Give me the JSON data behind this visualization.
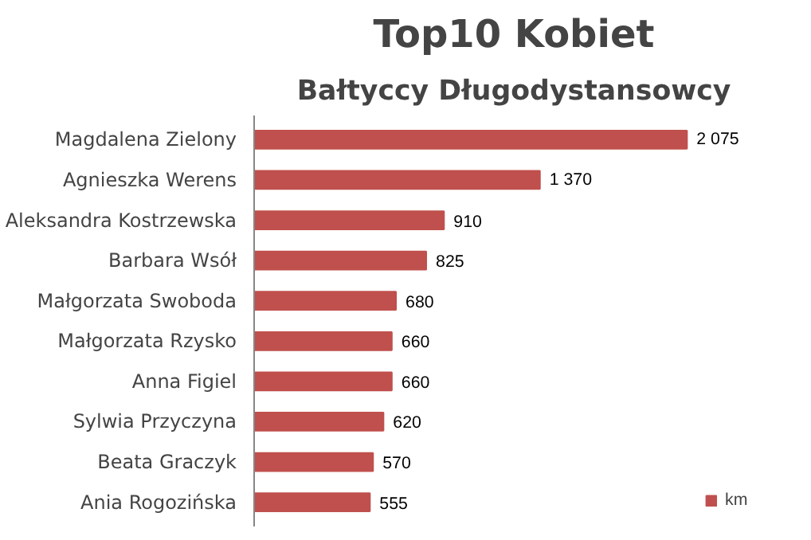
{
  "chart_data": {
    "type": "bar",
    "orientation": "horizontal",
    "title": "Top10 Kobiet",
    "subtitle": "Bałtyccy Długodystansowcy",
    "categories": [
      "Magdalena Zielony",
      "Agnieszka Werens",
      "Aleksandra Kostrzewska",
      "Barbara Wsół",
      "Małgorzata Swoboda",
      "Małgorzata Rzysko",
      "Anna Figiel",
      "Sylwia Przyczyna",
      "Beata Graczyk",
      "Ania Rogozińska"
    ],
    "series": [
      {
        "name": "km",
        "color": "#c0504d",
        "values": [
          2075,
          1370,
          910,
          825,
          680,
          660,
          660,
          620,
          570,
          555
        ],
        "value_labels": [
          "2 075",
          "1 370",
          "910",
          "825",
          "680",
          "660",
          "660",
          "620",
          "570",
          "555"
        ]
      }
    ],
    "legend": "bottom right"
  }
}
